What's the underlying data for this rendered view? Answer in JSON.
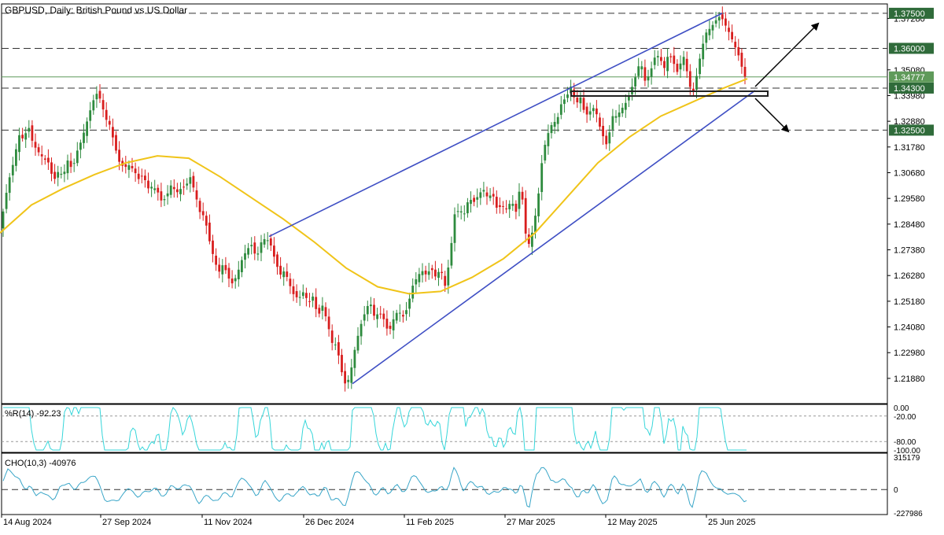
{
  "header": {
    "title": "GBPUSD, Daily:  British Pound vs US Dollar"
  },
  "colors": {
    "bull": "#2e8b3e",
    "bear": "#d81e1e",
    "ma": "#f0c419",
    "channel": "#3f4fc4",
    "wpr": "#36d6da",
    "cho": "#3aa6c8",
    "badge_dark": "#2f6b3a",
    "badge_light": "#5f9a5a",
    "grid": "#000000"
  },
  "price_axis": {
    "ticks": [
      "1.37280",
      "1.35080",
      "1.33980",
      "1.32880",
      "1.31780",
      "1.30680",
      "1.29580",
      "1.28480",
      "1.27380",
      "1.26280",
      "1.25180",
      "1.24080",
      "1.22980",
      "1.21880"
    ],
    "badges": [
      {
        "label": "1.37500",
        "style": "dark"
      },
      {
        "label": "1.36000",
        "style": "dark"
      },
      {
        "label": "1.34777",
        "style": "light"
      },
      {
        "label": "1.34300",
        "style": "dark"
      },
      {
        "label": "1.32500",
        "style": "dark"
      }
    ]
  },
  "wpr": {
    "label": "%R(14) -92.23",
    "ticks": [
      "0.00",
      "-20.00",
      "-80.00",
      "-100.00"
    ]
  },
  "cho": {
    "label": "CHO(10,3) -40976",
    "ticks": [
      "315179",
      "0",
      "-227986"
    ]
  },
  "time_axis": {
    "labels": [
      "14 Aug 2024",
      "27 Sep 2024",
      "11 Nov 2024",
      "26 Dec 2024",
      "11 Feb 2025",
      "27 Mar 2025",
      "12 May 2025",
      "25 Jun 2025"
    ]
  },
  "chart_data": {
    "type": "candlestick",
    "symbol": "GBPUSD",
    "timeframe": "Daily",
    "y_range": [
      1.208,
      1.379
    ],
    "horizontal_levels": [
      1.375,
      1.36,
      1.343,
      1.325
    ],
    "current_price": 1.34777,
    "price_path": [
      [
        0,
        1.283
      ],
      [
        5,
        1.292
      ],
      [
        10,
        1.302
      ],
      [
        17,
        1.311
      ],
      [
        24,
        1.323
      ],
      [
        30,
        1.321
      ],
      [
        36,
        1.327
      ],
      [
        42,
        1.319
      ],
      [
        48,
        1.316
      ],
      [
        55,
        1.313
      ],
      [
        62,
        1.311
      ],
      [
        68,
        1.303
      ],
      [
        75,
        1.308
      ],
      [
        80,
        1.305
      ],
      [
        86,
        1.312
      ],
      [
        92,
        1.308
      ],
      [
        98,
        1.316
      ],
      [
        104,
        1.321
      ],
      [
        110,
        1.328
      ],
      [
        116,
        1.335
      ],
      [
        122,
        1.341
      ],
      [
        128,
        1.338
      ],
      [
        134,
        1.33
      ],
      [
        140,
        1.327
      ],
      [
        146,
        1.318
      ],
      [
        152,
        1.311
      ],
      [
        158,
        1.309
      ],
      [
        164,
        1.31
      ],
      [
        170,
        1.308
      ],
      [
        176,
        1.304
      ],
      [
        182,
        1.306
      ],
      [
        188,
        1.3
      ],
      [
        194,
        1.301
      ],
      [
        200,
        1.299
      ],
      [
        206,
        1.294
      ],
      [
        212,
        1.297
      ],
      [
        218,
        1.302
      ],
      [
        224,
        1.298
      ],
      [
        230,
        1.3
      ],
      [
        236,
        1.301
      ],
      [
        242,
        1.305
      ],
      [
        248,
        1.298
      ],
      [
        254,
        1.29
      ],
      [
        260,
        1.288
      ],
      [
        266,
        1.278
      ],
      [
        272,
        1.27
      ],
      [
        278,
        1.264
      ],
      [
        284,
        1.268
      ],
      [
        290,
        1.262
      ],
      [
        296,
        1.259
      ],
      [
        302,
        1.264
      ],
      [
        308,
        1.27
      ],
      [
        314,
        1.274
      ],
      [
        320,
        1.276
      ],
      [
        326,
        1.27
      ],
      [
        332,
        1.277
      ],
      [
        338,
        1.279
      ],
      [
        344,
        1.276
      ],
      [
        350,
        1.269
      ],
      [
        356,
        1.263
      ],
      [
        362,
        1.265
      ],
      [
        368,
        1.259
      ],
      [
        374,
        1.254
      ],
      [
        380,
        1.253
      ],
      [
        386,
        1.256
      ],
      [
        392,
        1.251
      ],
      [
        398,
        1.254
      ],
      [
        404,
        1.245
      ],
      [
        410,
        1.25
      ],
      [
        416,
        1.243
      ],
      [
        422,
        1.234
      ],
      [
        428,
        1.233
      ],
      [
        434,
        1.222
      ],
      [
        440,
        1.215
      ],
      [
        446,
        1.222
      ],
      [
        452,
        1.233
      ],
      [
        458,
        1.241
      ],
      [
        464,
        1.247
      ],
      [
        470,
        1.252
      ],
      [
        476,
        1.245
      ],
      [
        482,
        1.247
      ],
      [
        488,
        1.244
      ],
      [
        494,
        1.238
      ],
      [
        500,
        1.244
      ],
      [
        506,
        1.248
      ],
      [
        512,
        1.245
      ],
      [
        518,
        1.249
      ],
      [
        524,
        1.258
      ],
      [
        530,
        1.262
      ],
      [
        536,
        1.265
      ],
      [
        542,
        1.263
      ],
      [
        548,
        1.266
      ],
      [
        554,
        1.262
      ],
      [
        560,
        1.266
      ],
      [
        566,
        1.258
      ],
      [
        572,
        1.271
      ],
      [
        578,
        1.289
      ],
      [
        584,
        1.291
      ],
      [
        590,
        1.289
      ],
      [
        596,
        1.296
      ],
      [
        602,
        1.294
      ],
      [
        608,
        1.297
      ],
      [
        614,
        1.3
      ],
      [
        620,
        1.296
      ],
      [
        626,
        1.298
      ],
      [
        632,
        1.291
      ],
      [
        638,
        1.293
      ],
      [
        644,
        1.291
      ],
      [
        650,
        1.295
      ],
      [
        656,
        1.29
      ],
      [
        662,
        1.303
      ],
      [
        668,
        1.281
      ],
      [
        672,
        1.276
      ],
      [
        678,
        1.283
      ],
      [
        684,
        1.296
      ],
      [
        690,
        1.315
      ],
      [
        696,
        1.323
      ],
      [
        702,
        1.328
      ],
      [
        708,
        1.329
      ],
      [
        714,
        1.337
      ],
      [
        720,
        1.339
      ],
      [
        726,
        1.344
      ],
      [
        732,
        1.336
      ],
      [
        738,
        1.339
      ],
      [
        744,
        1.331
      ],
      [
        750,
        1.333
      ],
      [
        756,
        1.335
      ],
      [
        762,
        1.327
      ],
      [
        768,
        1.321
      ],
      [
        772,
        1.318
      ],
      [
        778,
        1.331
      ],
      [
        784,
        1.331
      ],
      [
        790,
        1.334
      ],
      [
        796,
        1.337
      ],
      [
        802,
        1.342
      ],
      [
        808,
        1.348
      ],
      [
        814,
        1.355
      ],
      [
        820,
        1.346
      ],
      [
        826,
        1.349
      ],
      [
        832,
        1.356
      ],
      [
        838,
        1.357
      ],
      [
        844,
        1.351
      ],
      [
        850,
        1.358
      ],
      [
        856,
        1.354
      ],
      [
        862,
        1.349
      ],
      [
        868,
        1.358
      ],
      [
        874,
        1.349
      ],
      [
        880,
        1.339
      ],
      [
        886,
        1.349
      ],
      [
        892,
        1.36
      ],
      [
        898,
        1.367
      ],
      [
        904,
        1.369
      ],
      [
        910,
        1.372
      ],
      [
        916,
        1.374
      ],
      [
        922,
        1.37
      ],
      [
        928,
        1.366
      ],
      [
        934,
        1.361
      ],
      [
        940,
        1.356
      ],
      [
        946,
        1.348
      ],
      [
        950,
        1.3478
      ]
    ],
    "moving_average": [
      [
        0,
        1.281
      ],
      [
        40,
        1.293
      ],
      [
        80,
        1.3
      ],
      [
        120,
        1.306
      ],
      [
        160,
        1.311
      ],
      [
        200,
        1.314
      ],
      [
        240,
        1.313
      ],
      [
        280,
        1.305
      ],
      [
        320,
        1.296
      ],
      [
        360,
        1.287
      ],
      [
        400,
        1.277
      ],
      [
        440,
        1.266
      ],
      [
        480,
        1.258
      ],
      [
        520,
        1.255
      ],
      [
        560,
        1.256
      ],
      [
        600,
        1.262
      ],
      [
        640,
        1.27
      ],
      [
        680,
        1.281
      ],
      [
        720,
        1.296
      ],
      [
        760,
        1.311
      ],
      [
        800,
        1.322
      ],
      [
        840,
        1.331
      ],
      [
        880,
        1.337
      ],
      [
        920,
        1.343
      ],
      [
        950,
        1.347
      ]
    ],
    "channel_lines": [
      {
        "x1": 342,
        "y1": 1.2795,
        "x2": 918,
        "y2": 1.375
      },
      {
        "x1": 448,
        "y1": 1.2165,
        "x2": 960,
        "y2": 1.342
      }
    ],
    "indicators": {
      "williams_r": {
        "period": 14,
        "value": -92.23
      },
      "chaikin_oscillator": {
        "params": [
          10,
          3
        ],
        "value": -40976
      }
    }
  }
}
